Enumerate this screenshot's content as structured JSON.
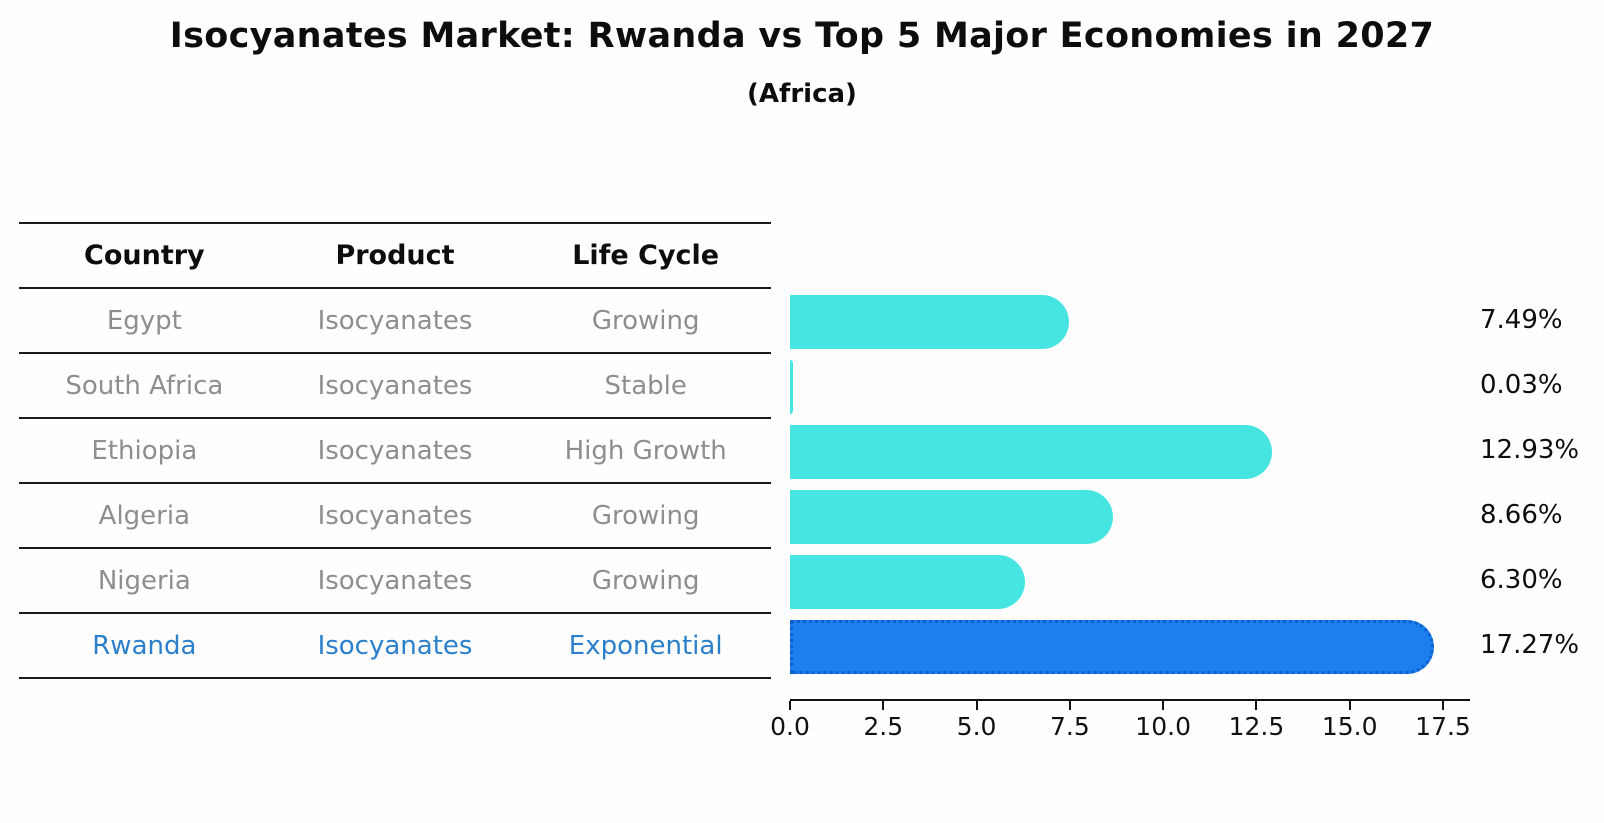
{
  "title": "Isocyanates Market: Rwanda vs Top 5 Major Economies in 2027",
  "subtitle": "(Africa)",
  "table": {
    "headers": {
      "country": "Country",
      "product": "Product",
      "life_cycle": "Life Cycle"
    },
    "rows": [
      {
        "country": "Egypt",
        "product": "Isocyanates",
        "life_cycle": "Growing",
        "highlight": false
      },
      {
        "country": "South Africa",
        "product": "Isocyanates",
        "life_cycle": "Stable",
        "highlight": false
      },
      {
        "country": "Ethiopia",
        "product": "Isocyanates",
        "life_cycle": "High Growth",
        "highlight": false
      },
      {
        "country": "Algeria",
        "product": "Isocyanates",
        "life_cycle": "Growing",
        "highlight": false
      },
      {
        "country": "Nigeria",
        "product": "Isocyanates",
        "life_cycle": "Growing",
        "highlight": false
      },
      {
        "country": "Rwanda",
        "product": "Isocyanates",
        "life_cycle": "Exponential",
        "highlight": true
      }
    ]
  },
  "chart_data": {
    "type": "bar",
    "orientation": "horizontal",
    "title": "Isocyanates Market: Rwanda vs Top 5 Major Economies in 2027",
    "subtitle": "(Africa)",
    "categories": [
      "Egypt",
      "South Africa",
      "Ethiopia",
      "Algeria",
      "Nigeria",
      "Rwanda"
    ],
    "values": [
      7.49,
      0.03,
      12.93,
      8.66,
      6.3,
      17.27
    ],
    "value_labels": [
      "7.49%",
      "0.03%",
      "12.93%",
      "8.66%",
      "6.30%",
      "17.27%"
    ],
    "xticks": [
      0.0,
      2.5,
      5.0,
      7.5,
      10.0,
      12.5,
      15.0,
      17.5
    ],
    "xlim": [
      0,
      18.2
    ],
    "highlight_index": 5,
    "grid": false,
    "legend": false
  },
  "colors": {
    "bar": "#47e5e1",
    "highlight_bar": "#1c80ec",
    "highlight_bar_border": "#0e5fd0",
    "row_text": "#8e8e8e",
    "highlight_text": "#2c7fcb",
    "axis_text": "#111111"
  }
}
